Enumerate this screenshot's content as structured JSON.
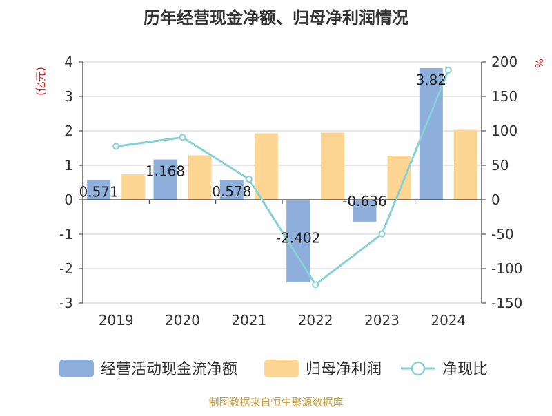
{
  "chart_data": {
    "type": "bar",
    "title": "历年经营现金净额、归母净利润情况",
    "categories": [
      "2019",
      "2020",
      "2021",
      "2022",
      "2023",
      "2024"
    ],
    "y_left": {
      "label": "(亿元)",
      "range": [
        -3,
        4
      ],
      "ticks": [
        "4",
        "3",
        "2",
        "1",
        "0",
        "-1",
        "-2",
        "-3"
      ]
    },
    "y_right": {
      "label": "%",
      "range": [
        -150,
        200
      ],
      "ticks": [
        "200",
        "150",
        "100",
        "50",
        "0",
        "-50",
        "-100",
        "-150"
      ]
    },
    "series": [
      {
        "name": "经营活动现金流净额",
        "type": "bar",
        "axis": "left",
        "color": "#8eaedb",
        "values": [
          0.571,
          1.168,
          0.578,
          -2.402,
          -0.636,
          3.82
        ],
        "labels": [
          "0.571",
          "1.168",
          "0.578",
          "-2.402",
          "-0.636",
          "3.82"
        ]
      },
      {
        "name": "归母净利润",
        "type": "bar",
        "axis": "left",
        "color": "#fdd694",
        "values": [
          0.74,
          1.29,
          1.93,
          1.95,
          1.28,
          2.03
        ]
      },
      {
        "name": "净现比",
        "type": "line",
        "axis": "right",
        "color": "#86d0d6",
        "values": [
          77.5,
          90.6,
          29.9,
          -123.2,
          -49.7,
          188.2
        ]
      }
    ],
    "legend_position": "bottom",
    "grid": true
  },
  "footer": {
    "source": "制图数据来自恒生聚源数据库"
  }
}
